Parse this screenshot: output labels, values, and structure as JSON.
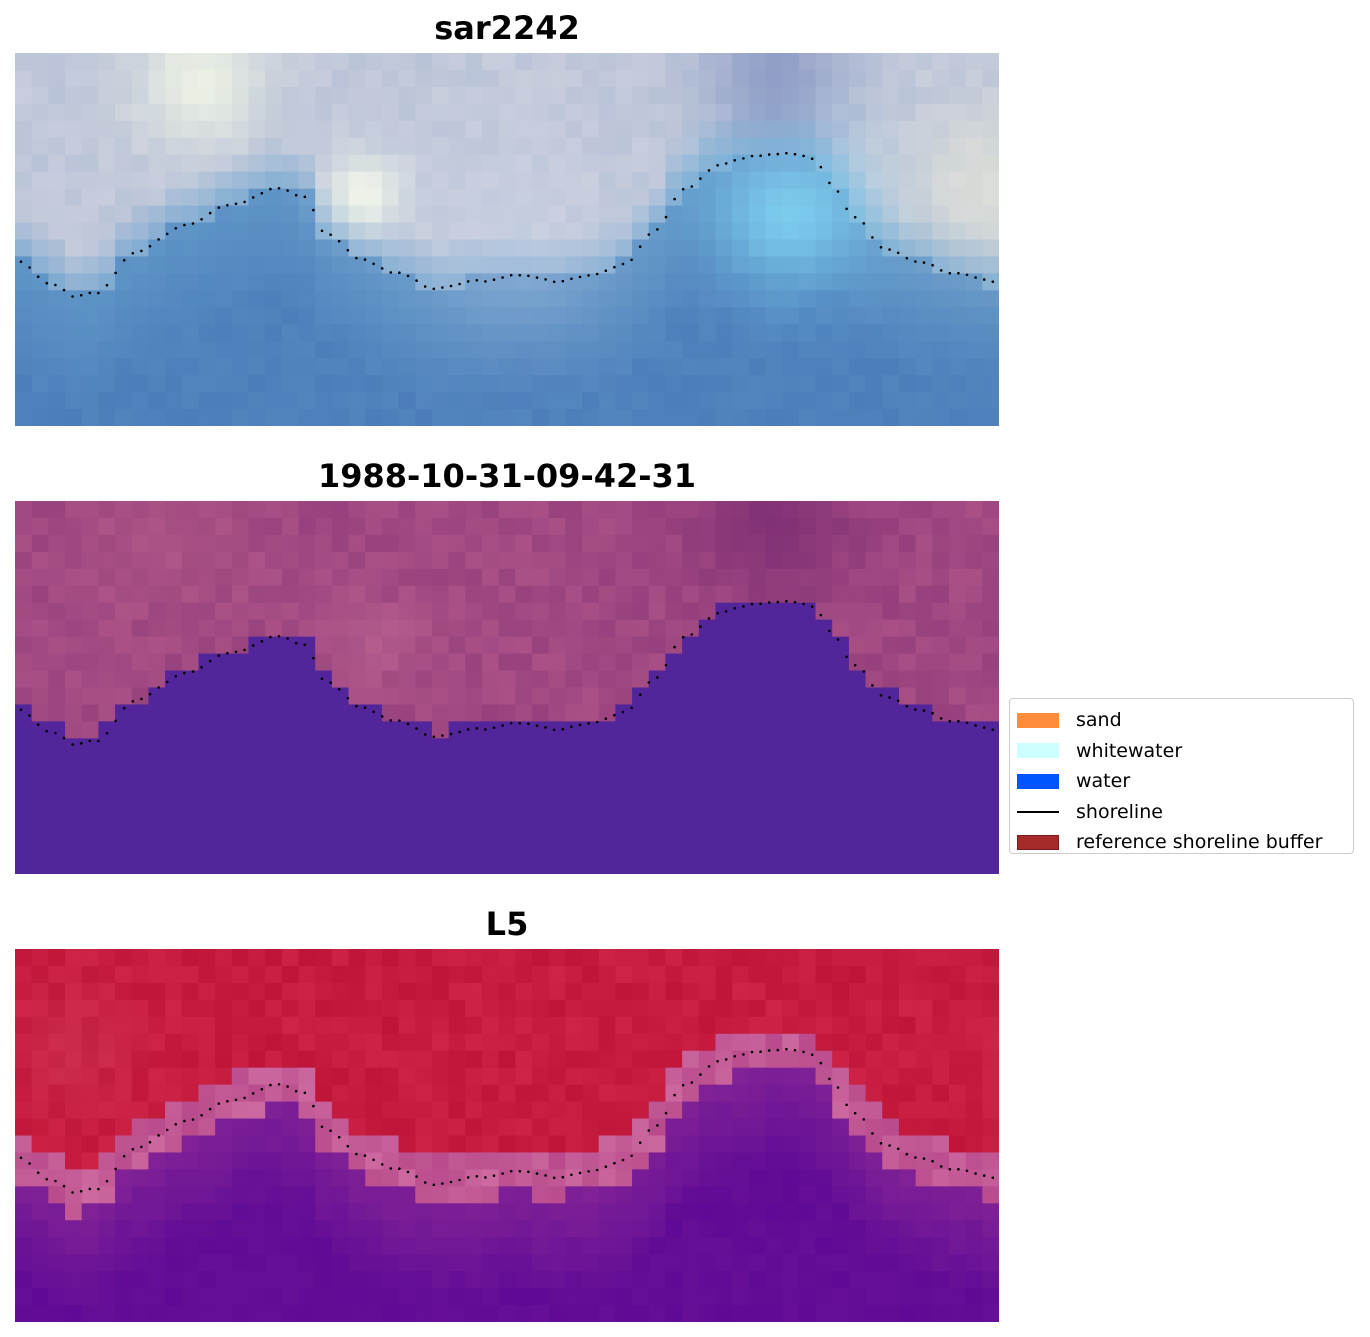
{
  "panels": [
    {
      "id": "p1",
      "title": "sar2242",
      "style": "rgb"
    },
    {
      "id": "p2",
      "title": "1988-10-31-09-42-31",
      "style": "classified"
    },
    {
      "id": "p3",
      "title": "L5",
      "style": "index"
    }
  ],
  "legend": {
    "items": [
      {
        "label": "sand",
        "color": "#ff8c3c",
        "kind": "patch"
      },
      {
        "label": "whitewater",
        "color": "#ccffff",
        "kind": "patch"
      },
      {
        "label": "water",
        "color": "#0055ff",
        "kind": "patch"
      },
      {
        "label": "shoreline",
        "color": "#000000",
        "kind": "line"
      },
      {
        "label": "reference shoreline buffer",
        "color": "#a52a2a",
        "kind": "patch"
      }
    ]
  },
  "colors": {
    "water_class": "#52259a",
    "index_high": "#c0002e",
    "index_low": "#5c00a0",
    "shoreline_dots": "#000000"
  }
}
